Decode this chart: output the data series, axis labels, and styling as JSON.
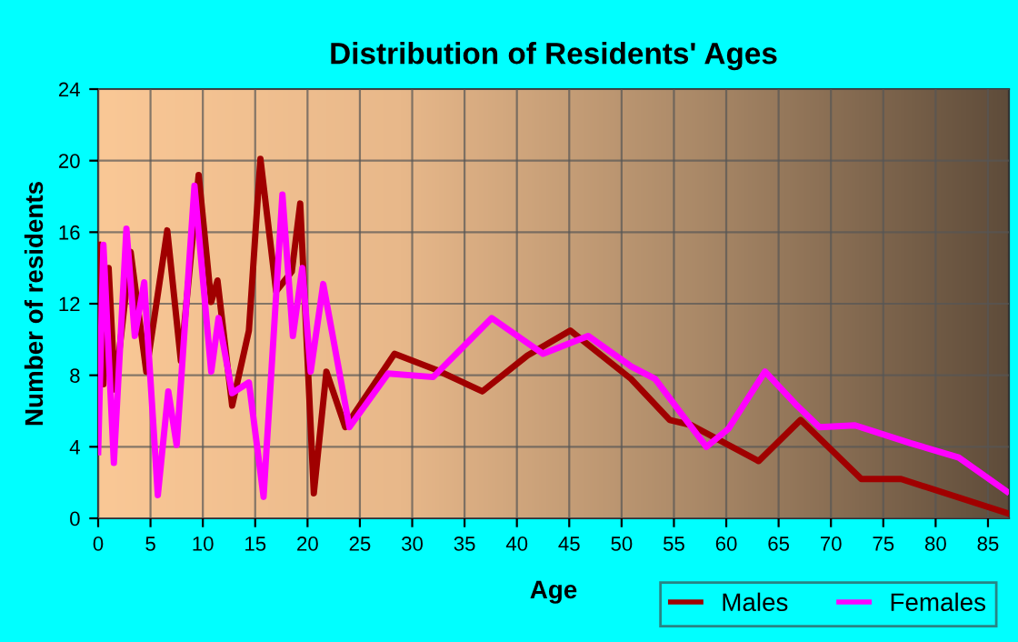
{
  "chart_data": {
    "type": "line",
    "title": "Distribution of Residents' Ages",
    "xlabel": "Age",
    "ylabel": "Number of residents",
    "xlim": [
      0,
      87
    ],
    "ylim": [
      0,
      24
    ],
    "xticks": [
      0,
      5,
      10,
      15,
      20,
      25,
      30,
      35,
      40,
      45,
      50,
      55,
      60,
      65,
      70,
      75,
      80,
      85
    ],
    "yticks": [
      0,
      4,
      8,
      12,
      16,
      20,
      24
    ],
    "grid": true,
    "legend": "bottom right",
    "marker": "none",
    "line_style": "solid",
    "series": [
      {
        "name": "Males",
        "color": "#a00000",
        "x": [
          0,
          0.5,
          1,
          1.6,
          3.1,
          4.6,
          6.6,
          7.9,
          9.6,
          10.8,
          11.4,
          12.8,
          14.4,
          15.5,
          17,
          18.5,
          19.3,
          20.6,
          21.8,
          23.6,
          28.3,
          32.3,
          36.7,
          41,
          45.1,
          50.9,
          54.6,
          56.7,
          63.1,
          67.1,
          72.9,
          76.7,
          86.8
        ],
        "values": [
          15.3,
          7.5,
          14,
          7.2,
          14.9,
          8.2,
          16.1,
          8.8,
          19.2,
          12.1,
          13.3,
          6.3,
          10.5,
          20.1,
          12.7,
          13.8,
          17.6,
          1.4,
          8.2,
          5.1,
          9.2,
          8.3,
          7.1,
          9.1,
          10.5,
          7.8,
          5.5,
          5.2,
          3.2,
          5.5,
          2.2,
          2.2,
          0.3
        ]
      },
      {
        "name": "Females",
        "color": "#ff00ff",
        "x": [
          0,
          0.5,
          1.5,
          2.7,
          3.5,
          4.4,
          5.7,
          6.7,
          7.5,
          9.2,
          10.8,
          11.5,
          12.8,
          14.4,
          15.8,
          17.6,
          18.6,
          19.5,
          20.3,
          21.5,
          24,
          27.7,
          32,
          37.6,
          42.5,
          46.8,
          50.9,
          53.2,
          58.1,
          60.2,
          63.7,
          66.6,
          68.9,
          72.3,
          77.6,
          82.2,
          86.8
        ],
        "values": [
          3.7,
          15.3,
          3.1,
          16.2,
          10.2,
          13.2,
          1.3,
          7.1,
          4.1,
          18.6,
          8.2,
          11.2,
          7,
          7.6,
          1.2,
          18.1,
          10.2,
          14,
          8.2,
          13.1,
          5.1,
          8.1,
          7.9,
          11.2,
          9.2,
          10.2,
          8.5,
          7.8,
          4,
          5,
          8.2,
          6.4,
          5.1,
          5.2,
          4.2,
          3.4,
          1.5
        ]
      }
    ]
  }
}
